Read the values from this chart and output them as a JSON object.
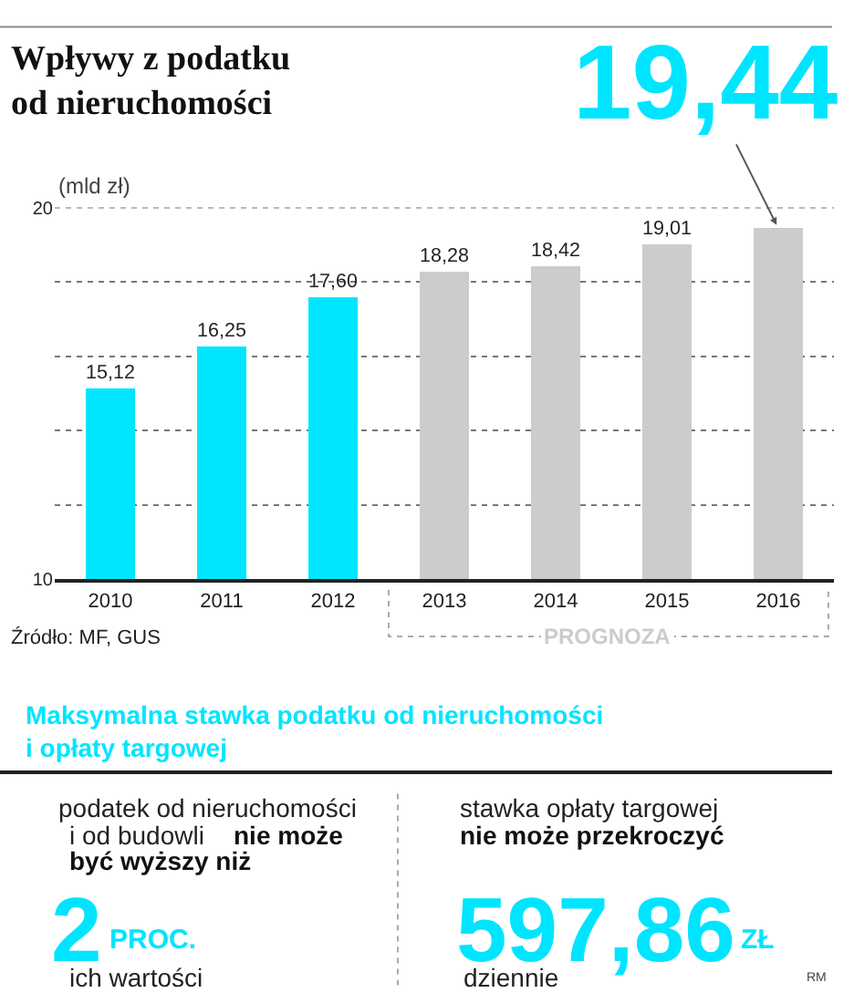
{
  "chart_data": [
    {
      "type": "bar",
      "title": "Wpływy z podatku\nod nieruchomości",
      "ylabel": "(mld zł)",
      "categories": [
        "2010",
        "2011",
        "2012",
        "2013",
        "2014",
        "2015",
        "2016"
      ],
      "values": [
        15.12,
        16.25,
        17.6,
        18.28,
        18.42,
        19.01,
        19.44
      ],
      "colors": [
        "#00e5ff",
        "#00e5ff",
        "#00e5ff",
        "#cccccc",
        "#cccccc",
        "#cccccc",
        "#cccccc"
      ],
      "value_labels": [
        "15,12",
        "16,25",
        "17,60",
        "18,28",
        "18,42",
        "19,01",
        null
      ],
      "ylim": [
        10,
        20
      ],
      "yticks": [
        10,
        {
          "value": 12,
          "label": null
        },
        {
          "value": 14,
          "label": null
        },
        {
          "value": 16,
          "label": null
        },
        {
          "value": 18,
          "label": null
        },
        20
      ],
      "grid": "y",
      "annotations": [
        {
          "text": "19,44",
          "x": "2016",
          "y": 19.44
        },
        "PROGNOZA",
        "Źródło: MF, GUS"
      ]
    },
    {
      "type": "other",
      "title": "Maksymalna stawka podatku od nieruchomości\ni opłaty targowej",
      "annotations": [
        "podatek od nieruchomości",
        "i od budowli",
        "nie może",
        "być wyższy niż",
        "2",
        "PROC.",
        "ich wartości",
        "stawka opłaty targowej",
        "nie może przekroczyć",
        "597,86",
        "ZŁ",
        "dziennie",
        "RM"
      ]
    }
  ]
}
